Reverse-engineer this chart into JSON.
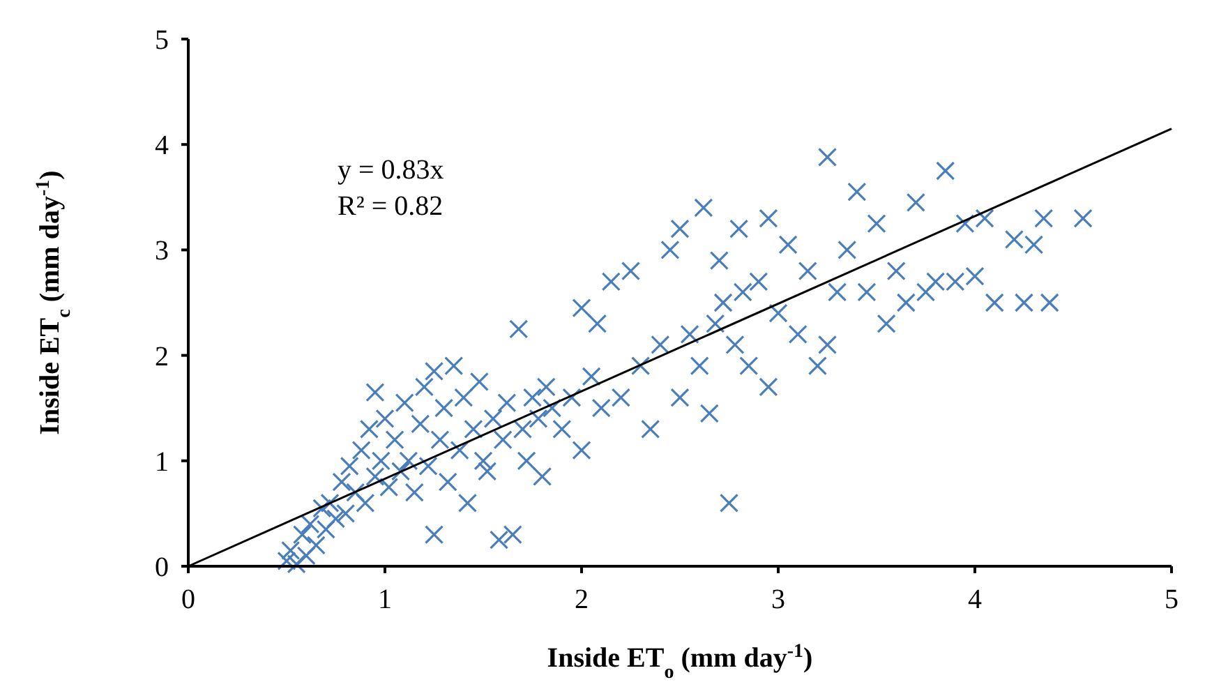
{
  "chart_data": {
    "type": "scatter",
    "xlabel": "Inside ET$_{o}$ (mm day$^{-1}$)",
    "ylabel": "Inside ET$_{c}$ (mm day$^{-1}$)",
    "xlim": [
      0,
      5
    ],
    "ylim": [
      0,
      5
    ],
    "xticks": [
      0,
      1,
      2,
      3,
      4,
      5
    ],
    "yticks": [
      0,
      1,
      2,
      3,
      4,
      5
    ],
    "grid": false,
    "annotations": [
      "y = 0.83x",
      "R² = 0.82"
    ],
    "series": [
      {
        "color": "#4a7ebb",
        "marker": "cross",
        "x": [
          0.5,
          0.52,
          0.55,
          0.58,
          0.6,
          0.62,
          0.65,
          0.68,
          0.7,
          0.72,
          0.75,
          0.78,
          0.8,
          0.82,
          0.85,
          0.88,
          0.9,
          0.92,
          0.95,
          0.95,
          0.98,
          1.0,
          1.02,
          1.05,
          1.08,
          1.1,
          1.12,
          1.15,
          1.18,
          1.2,
          1.22,
          1.25,
          1.25,
          1.28,
          1.3,
          1.32,
          1.35,
          1.38,
          1.4,
          1.42,
          1.45,
          1.48,
          1.5,
          1.52,
          1.55,
          1.58,
          1.6,
          1.62,
          1.65,
          1.68,
          1.7,
          1.72,
          1.75,
          1.78,
          1.8,
          1.82,
          1.85,
          1.9,
          1.95,
          2.0,
          2.0,
          2.05,
          2.08,
          2.1,
          2.15,
          2.2,
          2.25,
          2.3,
          2.35,
          2.4,
          2.45,
          2.5,
          2.5,
          2.55,
          2.6,
          2.62,
          2.65,
          2.68,
          2.7,
          2.72,
          2.75,
          2.78,
          2.8,
          2.82,
          2.85,
          2.9,
          2.95,
          2.95,
          3.0,
          3.05,
          3.1,
          3.15,
          3.2,
          3.25,
          3.25,
          3.3,
          3.35,
          3.4,
          3.45,
          3.5,
          3.55,
          3.6,
          3.65,
          3.7,
          3.75,
          3.8,
          3.85,
          3.9,
          3.95,
          4.0,
          4.05,
          4.1,
          4.2,
          4.25,
          4.3,
          4.35,
          4.38,
          4.55
        ],
        "values": [
          0.05,
          0.15,
          0.02,
          0.3,
          0.1,
          0.4,
          0.2,
          0.55,
          0.35,
          0.6,
          0.45,
          0.8,
          0.5,
          0.95,
          0.7,
          1.1,
          0.6,
          1.3,
          0.85,
          1.65,
          1.0,
          1.4,
          0.75,
          1.2,
          0.9,
          1.55,
          1.0,
          0.7,
          1.35,
          1.7,
          0.95,
          1.85,
          0.3,
          1.2,
          1.5,
          0.8,
          1.9,
          1.1,
          1.6,
          0.6,
          1.3,
          1.75,
          1.0,
          0.9,
          1.4,
          0.25,
          1.2,
          1.55,
          0.3,
          2.25,
          1.3,
          1.0,
          1.6,
          1.4,
          0.85,
          1.7,
          1.5,
          1.3,
          1.6,
          2.45,
          1.1,
          1.8,
          2.3,
          1.5,
          2.7,
          1.6,
          2.8,
          1.9,
          1.3,
          2.1,
          3.0,
          3.2,
          1.6,
          2.2,
          1.9,
          3.4,
          1.45,
          2.3,
          2.9,
          2.5,
          0.6,
          2.1,
          3.2,
          2.6,
          1.9,
          2.7,
          3.3,
          1.7,
          2.4,
          3.05,
          2.2,
          2.8,
          1.9,
          3.88,
          2.1,
          2.6,
          3.0,
          3.55,
          2.6,
          3.25,
          2.3,
          2.8,
          2.5,
          3.45,
          2.6,
          2.7,
          3.75,
          2.7,
          3.25,
          2.75,
          3.3,
          2.5,
          3.1,
          2.5,
          3.05,
          3.3,
          2.5,
          3.3
        ]
      },
      {
        "type": "line",
        "color": "#000000",
        "marker": "none",
        "x": [
          0,
          5
        ],
        "values": [
          0,
          4.15
        ]
      }
    ]
  }
}
